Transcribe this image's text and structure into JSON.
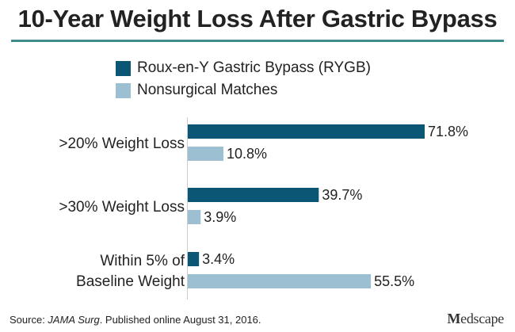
{
  "chart_data": {
    "type": "bar",
    "orientation": "horizontal",
    "title": "10-Year Weight Loss After Gastric Bypass",
    "categories": [
      [
        ">20% Weight Loss"
      ],
      [
        ">30% Weight Loss"
      ],
      [
        "Within 5% of",
        "Baseline Weight"
      ]
    ],
    "series": [
      {
        "name": "Roux-en-Y Gastric Bypass (RYGB)",
        "color": "#0b5575",
        "values": [
          71.8,
          39.7,
          3.4
        ],
        "labels": [
          "71.8%",
          "39.7%",
          "3.4%"
        ]
      },
      {
        "name": "Nonsurgical Matches",
        "color": "#9cc0d2",
        "values": [
          10.8,
          3.9,
          55.5
        ],
        "labels": [
          "10.8%",
          "3.9%",
          "55.5%"
        ]
      }
    ],
    "xlim": [
      0,
      71.8
    ],
    "xlabel": "",
    "ylabel": "",
    "grid": false,
    "legend_position": "top-left"
  },
  "source": {
    "prefix": "Source: ",
    "journal": "JAMA Surg",
    "suffix": ". Published online August 31, 2016."
  },
  "brand": {
    "logo_first": "M",
    "logo_rest": "edscape"
  },
  "colors": {
    "title_rule": "#3f8a8a",
    "axis": "#cccccc",
    "text": "#222222"
  }
}
